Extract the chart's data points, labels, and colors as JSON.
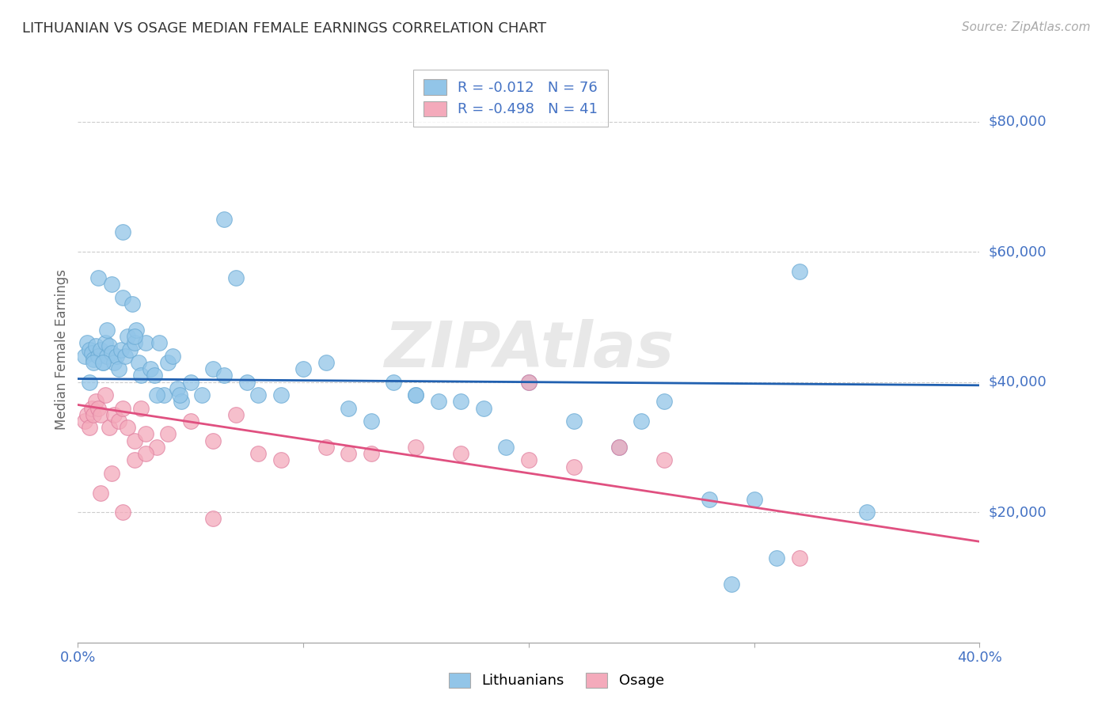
{
  "title": "LITHUANIAN VS OSAGE MEDIAN FEMALE EARNINGS CORRELATION CHART",
  "source": "Source: ZipAtlas.com",
  "ylabel": "Median Female Earnings",
  "xlim": [
    0.0,
    0.4
  ],
  "ylim": [
    0,
    90000
  ],
  "legend_R_blue": "-0.012",
  "legend_N_blue": "76",
  "legend_R_pink": "-0.498",
  "legend_N_pink": "41",
  "blue_color": "#92C5E8",
  "blue_edge_color": "#6AAAD4",
  "pink_color": "#F4AABB",
  "pink_edge_color": "#E080A0",
  "blue_line_color": "#2060B0",
  "pink_line_color": "#E05080",
  "blue_trend": [
    40500,
    39500
  ],
  "pink_trend": [
    36500,
    15500
  ],
  "watermark": "ZIPAtlas",
  "background_color": "#FFFFFF",
  "grid_color": "#CCCCCC",
  "title_color": "#333333",
  "ytick_color": "#4472C4",
  "xtick_color": "#4472C4",
  "blue_scatter_x": [
    0.003,
    0.004,
    0.005,
    0.006,
    0.007,
    0.008,
    0.009,
    0.01,
    0.011,
    0.012,
    0.013,
    0.014,
    0.015,
    0.016,
    0.017,
    0.018,
    0.019,
    0.02,
    0.021,
    0.022,
    0.023,
    0.024,
    0.025,
    0.026,
    0.027,
    0.028,
    0.03,
    0.032,
    0.034,
    0.036,
    0.038,
    0.04,
    0.042,
    0.044,
    0.046,
    0.05,
    0.055,
    0.06,
    0.065,
    0.07,
    0.075,
    0.08,
    0.09,
    0.1,
    0.11,
    0.12,
    0.13,
    0.14,
    0.15,
    0.16,
    0.17,
    0.18,
    0.19,
    0.2,
    0.22,
    0.24,
    0.26,
    0.28,
    0.3,
    0.32,
    0.005,
    0.007,
    0.009,
    0.011,
    0.013,
    0.015,
    0.02,
    0.025,
    0.035,
    0.045,
    0.065,
    0.15,
    0.25,
    0.29,
    0.31,
    0.35
  ],
  "blue_scatter_y": [
    44000,
    46000,
    45000,
    44500,
    43500,
    45500,
    44000,
    45000,
    43000,
    46000,
    44000,
    45500,
    44500,
    43000,
    44000,
    42000,
    45000,
    53000,
    44000,
    47000,
    45000,
    52000,
    46000,
    48000,
    43000,
    41000,
    46000,
    42000,
    41000,
    46000,
    38000,
    43000,
    44000,
    39000,
    37000,
    40000,
    38000,
    42000,
    41000,
    56000,
    40000,
    38000,
    38000,
    42000,
    43000,
    36000,
    34000,
    40000,
    38000,
    37000,
    37000,
    36000,
    30000,
    40000,
    34000,
    30000,
    37000,
    22000,
    22000,
    57000,
    40000,
    43000,
    56000,
    43000,
    48000,
    55000,
    63000,
    47000,
    38000,
    38000,
    65000,
    38000,
    34000,
    9000,
    13000,
    20000
  ],
  "pink_scatter_x": [
    0.003,
    0.004,
    0.005,
    0.006,
    0.007,
    0.008,
    0.009,
    0.01,
    0.012,
    0.014,
    0.016,
    0.018,
    0.02,
    0.022,
    0.025,
    0.028,
    0.03,
    0.035,
    0.04,
    0.05,
    0.06,
    0.07,
    0.08,
    0.09,
    0.11,
    0.13,
    0.15,
    0.17,
    0.2,
    0.22,
    0.24,
    0.26,
    0.01,
    0.015,
    0.02,
    0.025,
    0.03,
    0.06,
    0.12,
    0.2,
    0.32
  ],
  "pink_scatter_y": [
    34000,
    35000,
    33000,
    36000,
    35000,
    37000,
    36000,
    35000,
    38000,
    33000,
    35000,
    34000,
    36000,
    33000,
    31000,
    36000,
    32000,
    30000,
    32000,
    34000,
    31000,
    35000,
    29000,
    28000,
    30000,
    29000,
    30000,
    29000,
    28000,
    27000,
    30000,
    28000,
    23000,
    26000,
    20000,
    28000,
    29000,
    19000,
    29000,
    40000,
    13000
  ]
}
